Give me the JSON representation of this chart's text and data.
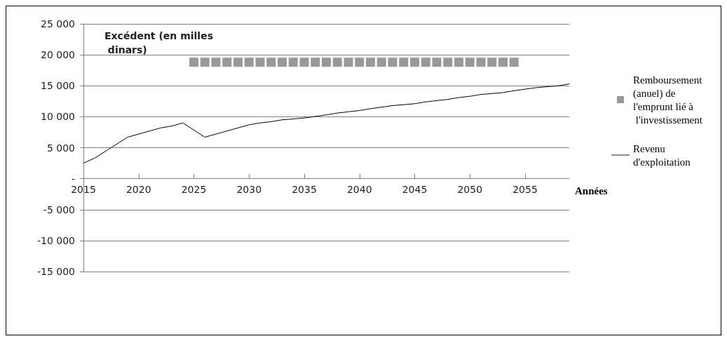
{
  "chart_data": {
    "type": "line",
    "ylabel": "Excédent (en milles dinars)",
    "xlabel": "Années",
    "xlim": [
      2015,
      2059
    ],
    "xticks": [
      2015,
      2020,
      2025,
      2030,
      2035,
      2040,
      2045,
      2050,
      2055
    ],
    "ylim": [
      -15000,
      25000
    ],
    "yticks": [
      {
        "value": -15000,
        "label": "-15 000"
      },
      {
        "value": -10000,
        "label": "-10 000"
      },
      {
        "value": -5000,
        "label": "-5 000"
      },
      {
        "value": 0,
        "label": "-"
      },
      {
        "value": 5000,
        "label": "5 000"
      },
      {
        "value": 10000,
        "label": "10 000"
      },
      {
        "value": 15000,
        "label": "15 000"
      },
      {
        "value": 20000,
        "label": "20 000"
      },
      {
        "value": 25000,
        "label": "25 000"
      }
    ],
    "grid": "y",
    "legend": "right",
    "series": [
      {
        "name": "Remboursement (anuel) de l'emprunt lié à l'investissement",
        "type": "scatter",
        "marker": "square",
        "color": "#808080",
        "x": [
          2025,
          2026,
          2027,
          2028,
          2029,
          2030,
          2031,
          2032,
          2033,
          2034,
          2035,
          2036,
          2037,
          2038,
          2039,
          2040,
          2041,
          2042,
          2043,
          2044,
          2045,
          2046,
          2047,
          2048,
          2049,
          2050,
          2051,
          2052,
          2053,
          2054
        ],
        "values": [
          18800,
          18800,
          18800,
          18800,
          18800,
          18800,
          18800,
          18800,
          18800,
          18800,
          18800,
          18800,
          18800,
          18800,
          18800,
          18800,
          18800,
          18800,
          18800,
          18800,
          18800,
          18800,
          18800,
          18800,
          18800,
          18800,
          18800,
          18800,
          18800,
          18800
        ]
      },
      {
        "name": "Revenu d'exploitation",
        "marker": "none",
        "color": "#000000",
        "x": [
          2015,
          2016,
          2017.5,
          2019,
          2020,
          2022,
          2023,
          2024,
          2026,
          2027,
          2028,
          2030,
          2031,
          2032,
          2033,
          2035,
          2037,
          2038,
          2040,
          2041,
          2043,
          2045,
          2046,
          2048,
          2049,
          2050,
          2051,
          2053,
          2054,
          2056,
          2058,
          2059
        ],
        "values": [
          2500,
          3300,
          5000,
          6700,
          7200,
          8200,
          8500,
          9000,
          6700,
          7200,
          7700,
          8700,
          9000,
          9200,
          9500,
          9800,
          10300,
          10600,
          11000,
          11300,
          11800,
          12100,
          12400,
          12800,
          13100,
          13300,
          13600,
          13900,
          14200,
          14700,
          15000,
          15300
        ]
      }
    ]
  }
}
